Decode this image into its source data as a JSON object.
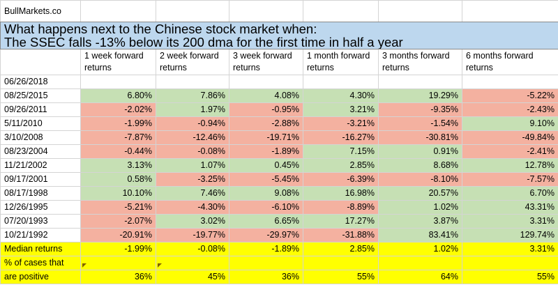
{
  "site": "BullMarkets.co",
  "title_line1": "What happens next to the Chinese stock market when:",
  "title_line2": "The SSEC falls -13% below its 200 dma for the first time in half a year",
  "headers": [
    [
      "1 week forward",
      "returns"
    ],
    [
      "2 week forward",
      "returns"
    ],
    [
      "3 week forward",
      "returns"
    ],
    [
      "1 month forward",
      "returns"
    ],
    [
      "3 months forward",
      "returns"
    ],
    [
      "6 months forward",
      "returns"
    ]
  ],
  "current_date": "06/26/2018",
  "rows": [
    {
      "date": "08/25/2015",
      "values": [
        "6.80%",
        "7.86%",
        "4.08%",
        "4.30%",
        "19.29%",
        "-5.22%"
      ]
    },
    {
      "date": "09/26/2011",
      "values": [
        "-2.02%",
        "1.97%",
        "-0.95%",
        "3.21%",
        "-9.35%",
        "-2.43%"
      ]
    },
    {
      "date": "5/11/2010",
      "values": [
        "-1.99%",
        "-0.94%",
        "-2.88%",
        "-3.21%",
        "-1.54%",
        "9.10%"
      ]
    },
    {
      "date": "3/10/2008",
      "values": [
        "-7.87%",
        "-12.46%",
        "-19.71%",
        "-16.27%",
        "-30.81%",
        "-49.84%"
      ]
    },
    {
      "date": "08/23/2004",
      "values": [
        "-0.44%",
        "-0.08%",
        "-1.89%",
        "7.15%",
        "0.91%",
        "-2.41%"
      ]
    },
    {
      "date": "11/21/2002",
      "values": [
        "3.13%",
        "1.07%",
        "0.45%",
        "2.85%",
        "8.68%",
        "12.78%"
      ]
    },
    {
      "date": "09/17/2001",
      "values": [
        "0.58%",
        "-3.25%",
        "-5.45%",
        "-6.39%",
        "-8.10%",
        "-7.57%"
      ]
    },
    {
      "date": "08/17/1998",
      "values": [
        "10.10%",
        "7.46%",
        "9.08%",
        "16.98%",
        "20.57%",
        "6.70%"
      ]
    },
    {
      "date": "12/26/1995",
      "values": [
        "-5.21%",
        "-4.30%",
        "-6.10%",
        "-8.89%",
        "1.02%",
        "43.31%"
      ]
    },
    {
      "date": "07/20/1993",
      "values": [
        "-2.07%",
        "3.02%",
        "6.65%",
        "17.27%",
        "3.87%",
        "3.31%"
      ]
    },
    {
      "date": "10/21/1992",
      "values": [
        "-20.91%",
        "-19.77%",
        "-29.97%",
        "-31.88%",
        "83.41%",
        "129.74%"
      ]
    }
  ],
  "median_label": "Median returns",
  "median_values": [
    "-1.99%",
    "-0.08%",
    "-1.89%",
    "2.85%",
    "1.02%",
    "3.31%"
  ],
  "pct_label_line1": "% of cases that",
  "pct_label_line2": "are positive",
  "pct_values": [
    "36%",
    "45%",
    "36%",
    "55%",
    "64%",
    "55%"
  ],
  "colors": {
    "positive": "#c6e0b4",
    "negative": "#f4b1a0",
    "summary": "#ffff00",
    "title": "#bdd7ee"
  }
}
